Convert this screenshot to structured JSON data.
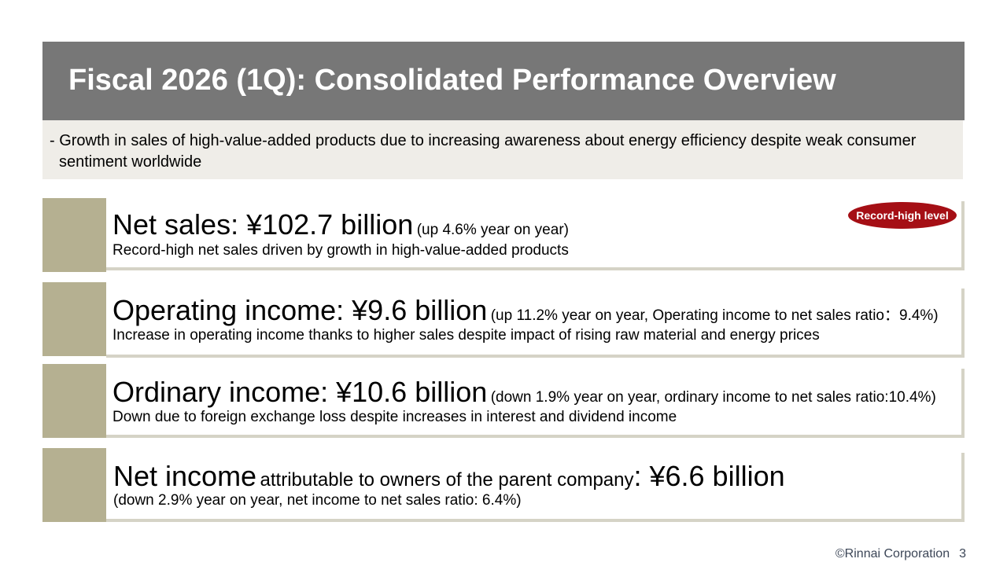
{
  "title": "Fiscal 2026 (1Q): Consolidated Performance Overview",
  "summary": "- Growth in sales of high-value-added products due to increasing awareness about energy efficiency despite weak consumer sentiment worldwide",
  "cards": [
    {
      "headline": "Net sales: ¥102.7 billion",
      "note": "(up 4.6% year on year)",
      "detail": "Record-high net sales driven by growth in high-value-added products",
      "badge": "Record-high level"
    },
    {
      "headline": "Operating income: ¥9.6 billion",
      "note": "(up 11.2% year on year, Operating income to net sales ratio：9.4%)",
      "detail": "Increase in operating income thanks to higher sales despite impact of rising raw material and energy prices"
    },
    {
      "headline": "Ordinary income: ¥10.6 billion",
      "note": "(down 1.9% year on year, ordinary income to net sales ratio:10.4%)",
      "detail": "Down due to foreign exchange loss despite increases in interest and dividend income"
    },
    {
      "headline_part1": "Net income",
      "headline_part2": "attributable to owners of the parent company",
      "headline_part3": ": ¥6.6 billion",
      "detail": "(down 2.9% year on year, net income to net sales ratio: 6.4%)"
    }
  ],
  "footer": {
    "copyright": "©Rinnai Corporation",
    "page": "3"
  }
}
